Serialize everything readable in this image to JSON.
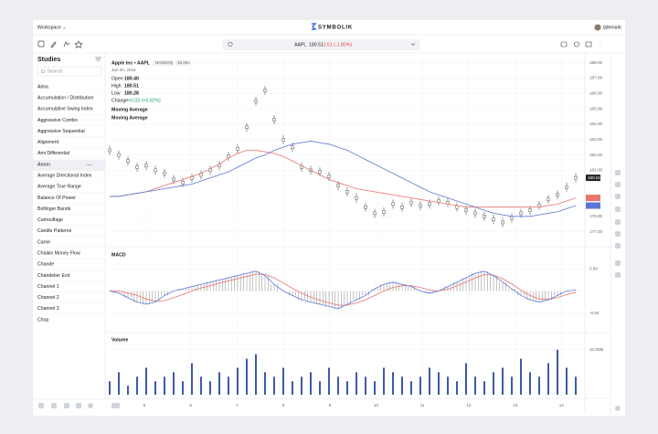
{
  "header": {
    "workspace": "Workspace ⌄",
    "brand": "SYMBOLIK",
    "user": "tjdemark"
  },
  "search": {
    "symbol": "AAPL",
    "price": "180.51",
    "change": "-2.51 (-1.80%)"
  },
  "sidebar": {
    "title": "Studies",
    "search_placeholder": "Search",
    "items": [
      "Alma",
      "Accumulation / Distribution",
      "Accumulative Swing Index",
      "Aggressive Combo",
      "Aggressive Sequential",
      "Alignment",
      "Ami Differential",
      "Aroon",
      "Average Directional Index",
      "Average True Range",
      "Balance Of Power",
      "Bollinger Bands",
      "Camouflage",
      "Candle Patterns",
      "Carrie",
      "Chaikin Money Flow",
      "Chande",
      "Chandelier Exit",
      "Channel 1",
      "Channel 2",
      "Channel 3",
      "Chop"
    ]
  },
  "price_panel": {
    "name": "Apple Inc • AAPL",
    "exchange": "NASDAQ",
    "interval": "15 min",
    "date": "Jan 30, 2023",
    "open_label": "Open",
    "open": "180.40",
    "high_label": "High",
    "high": "180.51",
    "low_label": "Low",
    "low": "180.28",
    "change_label": "Change",
    "change": "+0.03 (+0.02%)",
    "studies": [
      "Moving Average",
      "Moving Average"
    ],
    "last_badge": "180.51",
    "ylim": [
      176.5,
      188.4
    ],
    "yticks": [
      {
        "value": 188,
        "label": "188.00"
      },
      {
        "value": 187,
        "label": "187.00"
      },
      {
        "value": 186,
        "label": "186.00"
      },
      {
        "value": 185,
        "label": "185.00"
      },
      {
        "value": 184,
        "label": "184.00"
      },
      {
        "value": 183,
        "label": "183.00"
      },
      {
        "value": 182,
        "label": "182.00"
      },
      {
        "value": 181,
        "label": "181.00"
      },
      {
        "value": 178,
        "label": "178.00"
      },
      {
        "value": 177,
        "label": "177.00"
      }
    ],
    "close": [
      182.3,
      182.0,
      181.6,
      181.2,
      181.3,
      181.0,
      180.8,
      180.4,
      180.2,
      180.5,
      180.7,
      181.0,
      181.3,
      181.9,
      182.4,
      183.8,
      185.5,
      186.2,
      184.3,
      183.0,
      182.5,
      181.2,
      181.0,
      180.9,
      180.6,
      180.0,
      179.6,
      179.2,
      178.6,
      178.2,
      178.3,
      178.8,
      178.6,
      178.9,
      178.7,
      178.8,
      179.0,
      178.9,
      178.6,
      178.4,
      178.2,
      178.0,
      177.8,
      177.6,
      177.9,
      178.2,
      178.4,
      178.7,
      179.1,
      179.4,
      179.9,
      180.51
    ],
    "ma_red": {
      "color": "#e8746c",
      "values": [
        179.3,
        179.3,
        179.4,
        179.5,
        179.6,
        179.8,
        180.0,
        180.2,
        180.4,
        180.6,
        180.8,
        181.1,
        181.4,
        181.8,
        182.1,
        182.3,
        182.3,
        182.2,
        182.1,
        181.9,
        181.6,
        181.3,
        181.0,
        180.7,
        180.4,
        180.2,
        180.0,
        179.8,
        179.7,
        179.6,
        179.5,
        179.4,
        179.3,
        179.2,
        179.1,
        179.0,
        178.9,
        178.8,
        178.7,
        178.6,
        178.6,
        178.6,
        178.6,
        178.6,
        178.6,
        178.6,
        178.6,
        178.6,
        178.7,
        178.8,
        179.0,
        179.2
      ]
    },
    "ma_blue": {
      "color": "#5a77d6",
      "values": [
        179.3,
        179.3,
        179.4,
        179.5,
        179.6,
        179.7,
        179.8,
        179.9,
        180.0,
        180.1,
        180.3,
        180.5,
        180.7,
        180.9,
        181.2,
        181.5,
        181.8,
        182.0,
        182.3,
        182.5,
        182.7,
        182.8,
        182.9,
        182.8,
        182.7,
        182.5,
        182.3,
        182.0,
        181.7,
        181.4,
        181.1,
        180.8,
        180.5,
        180.2,
        179.9,
        179.6,
        179.4,
        179.2,
        179.0,
        178.8,
        178.6,
        178.4,
        178.2,
        178.1,
        178.0,
        178.0,
        178.0,
        178.1,
        178.2,
        178.3,
        178.5,
        178.7
      ]
    }
  },
  "macd_panel": {
    "title": "MACD",
    "ylim": [
      -0.9,
      0.9
    ],
    "yticks": [
      {
        "value": 0.5,
        "label": "0.50"
      },
      {
        "value": -0.5,
        "label": "-0.50"
      }
    ],
    "macd": {
      "color": "#5a77d6",
      "values": [
        0.0,
        -0.05,
        -0.15,
        -0.25,
        -0.3,
        -0.25,
        -0.1,
        0.0,
        0.05,
        0.1,
        0.15,
        0.2,
        0.25,
        0.3,
        0.35,
        0.4,
        0.45,
        0.35,
        0.15,
        0.0,
        -0.1,
        -0.2,
        -0.25,
        -0.3,
        -0.35,
        -0.4,
        -0.3,
        -0.2,
        -0.1,
        0.05,
        0.15,
        0.2,
        0.15,
        0.1,
        0.0,
        -0.05,
        0.0,
        0.1,
        0.2,
        0.3,
        0.4,
        0.45,
        0.35,
        0.2,
        0.05,
        -0.1,
        -0.2,
        -0.25,
        -0.2,
        -0.1,
        0.0,
        0.02
      ]
    },
    "signal": {
      "color": "#e8746c",
      "values": [
        0.0,
        0.0,
        -0.05,
        -0.1,
        -0.18,
        -0.23,
        -0.22,
        -0.15,
        -0.08,
        0.0,
        0.07,
        0.12,
        0.18,
        0.23,
        0.28,
        0.33,
        0.38,
        0.38,
        0.3,
        0.18,
        0.06,
        -0.05,
        -0.14,
        -0.21,
        -0.27,
        -0.32,
        -0.32,
        -0.27,
        -0.2,
        -0.1,
        0.0,
        0.08,
        0.12,
        0.12,
        0.08,
        0.02,
        0.0,
        0.04,
        0.12,
        0.2,
        0.3,
        0.37,
        0.36,
        0.28,
        0.16,
        0.02,
        -0.1,
        -0.18,
        -0.19,
        -0.15,
        -0.08,
        -0.03
      ]
    }
  },
  "volume_panel": {
    "title": "Volume",
    "color": "#3d5aa8",
    "ylim": [
      0,
      13000000
    ],
    "yticks": [
      {
        "value": 10000000,
        "label": "10.00M"
      }
    ],
    "values": [
      3000000,
      5000000,
      2000000,
      4000000,
      6000000,
      3000000,
      4000000,
      5000000,
      3000000,
      7000000,
      4000000,
      3000000,
      5000000,
      4000000,
      6000000,
      8000000,
      9000000,
      5000000,
      4000000,
      6000000,
      3000000,
      4000000,
      5000000,
      3000000,
      6000000,
      4000000,
      3000000,
      5000000,
      4000000,
      3000000,
      6000000,
      5000000,
      4000000,
      3000000,
      4000000,
      6000000,
      5000000,
      4000000,
      3000000,
      7000000,
      4000000,
      3000000,
      5000000,
      6000000,
      4000000,
      8000000,
      5000000,
      4000000,
      7000000,
      10000000,
      6000000,
      4000000
    ]
  },
  "x_axis": [
    "5",
    "6",
    "7",
    "8",
    "9",
    "10",
    "11",
    "12",
    "13",
    "14"
  ]
}
